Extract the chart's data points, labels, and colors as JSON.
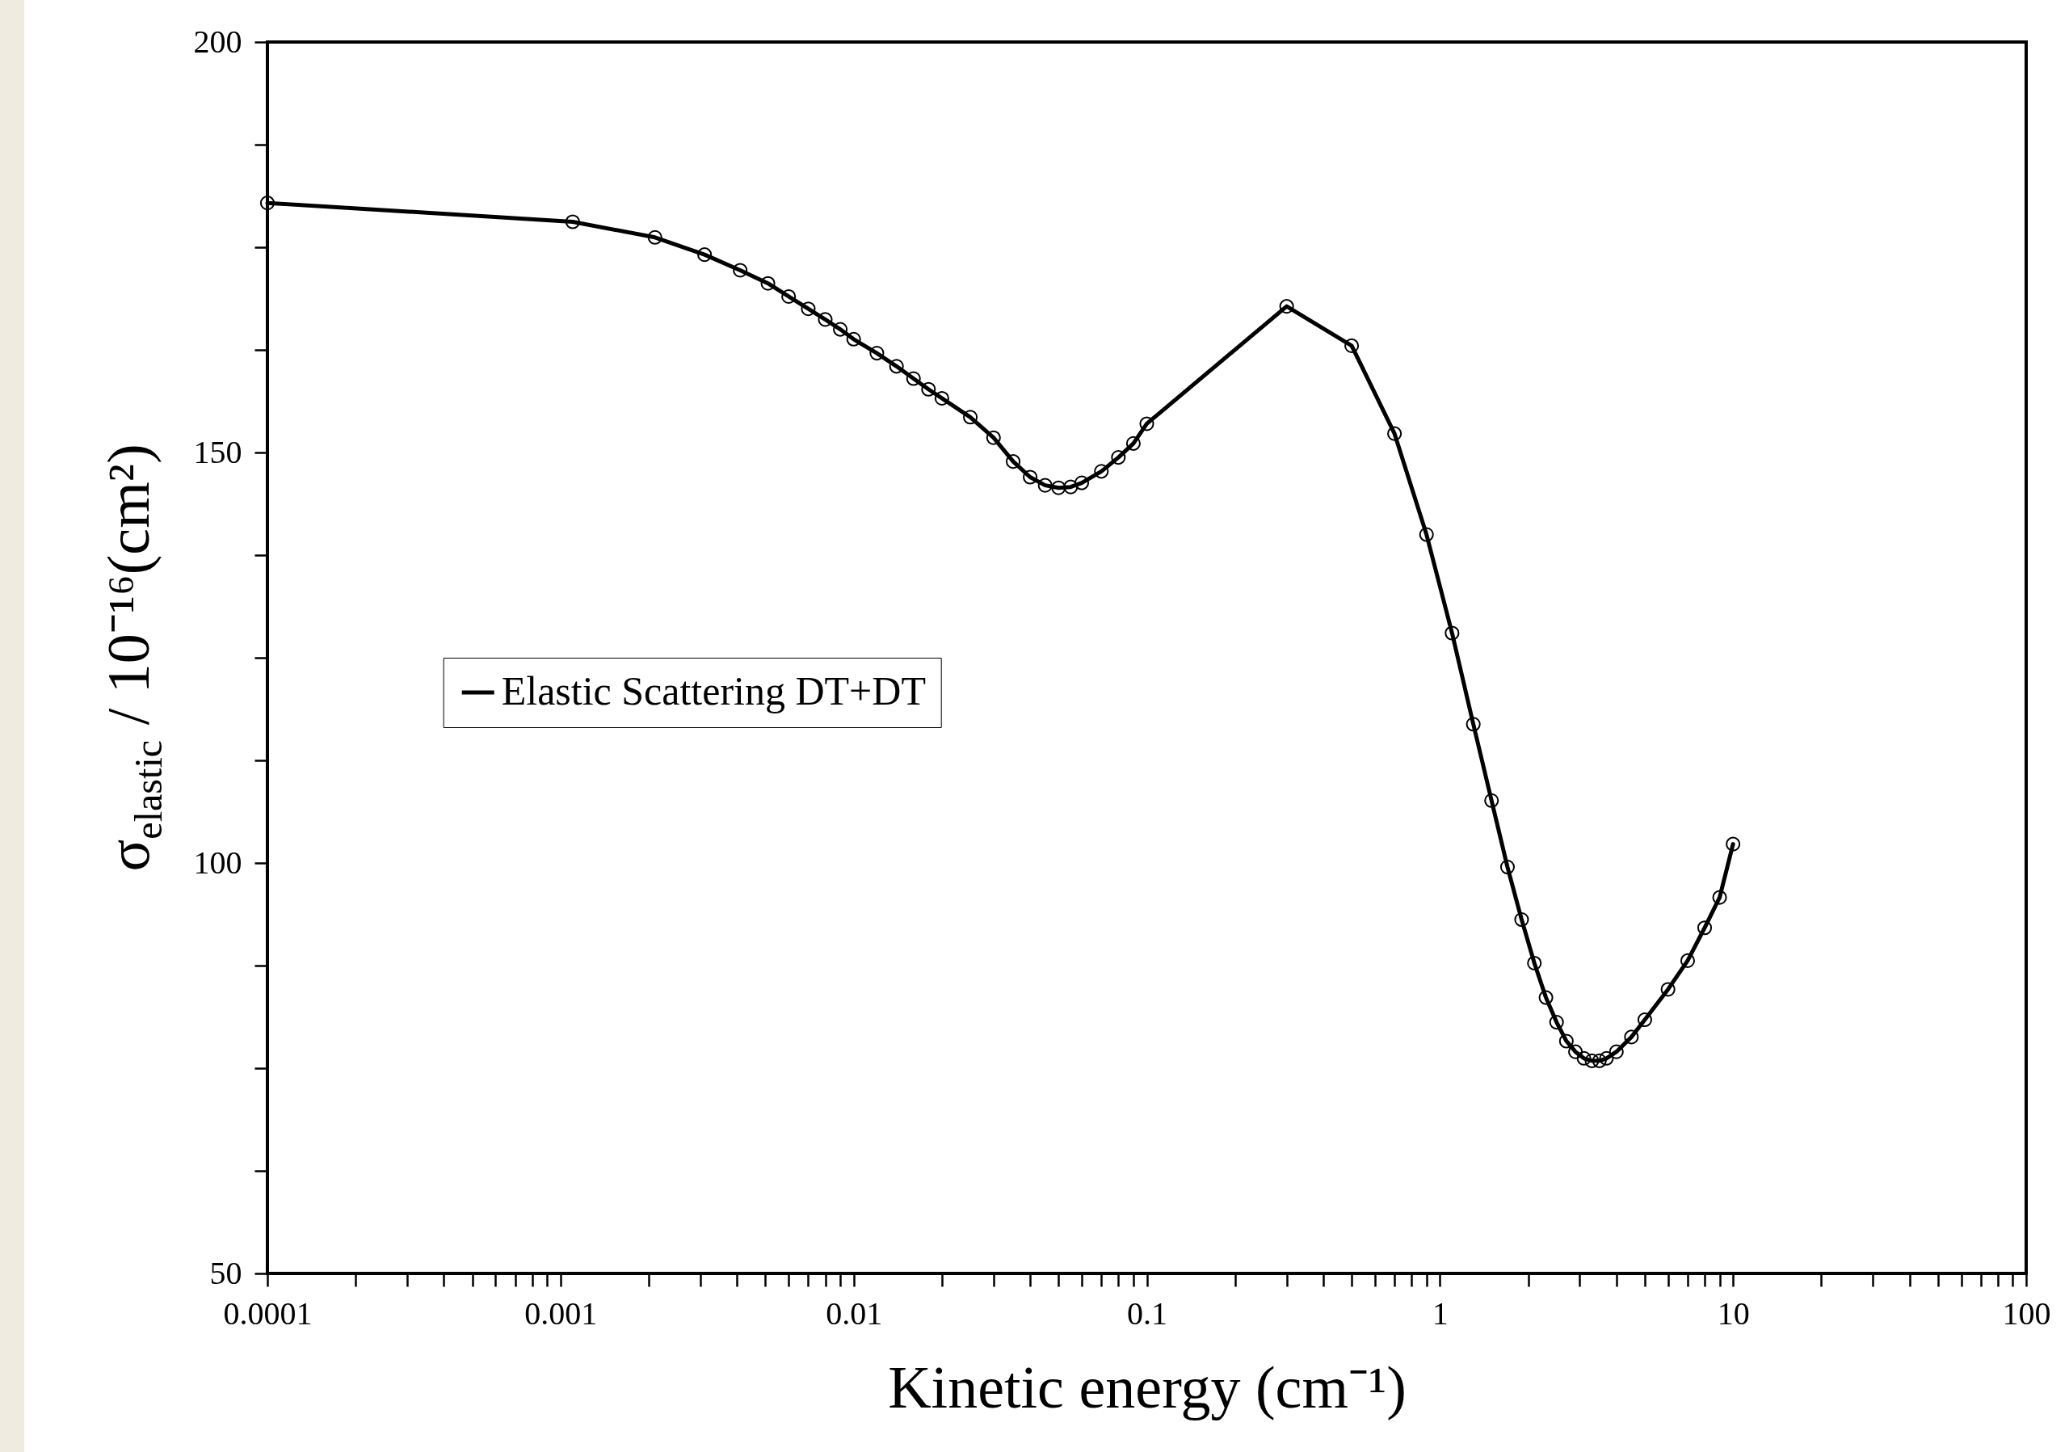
{
  "chart_data": {
    "type": "line",
    "xlabel": "Kinetic energy (cm⁻¹)",
    "ylabel": "σ$_{elastic}$ / 10⁻¹⁶(cm²)",
    "log": "x",
    "legend": "left",
    "marker": "circle",
    "line_style": "solid",
    "x": [
      0.0001,
      0.0011,
      0.0021,
      0.0031,
      0.0041,
      0.0051,
      0.006,
      0.007,
      0.008,
      0.009,
      0.01,
      0.012,
      0.014,
      0.016,
      0.018,
      0.02,
      0.025,
      0.03,
      0.035,
      0.04,
      0.045,
      0.05,
      0.055,
      0.06,
      0.07,
      0.08,
      0.09,
      0.1,
      0.3,
      0.5,
      0.7,
      0.9,
      1.1,
      1.3,
      1.5,
      1.7,
      1.9,
      2.1,
      2.3,
      2.5,
      2.7,
      2.9,
      3.1,
      3.3,
      3.5,
      3.7,
      4,
      4.5,
      5,
      6,
      7,
      8,
      9,
      10
    ],
    "series": [
      {
        "name": "Elastic Scattering DT+DT",
        "color": "#000000",
        "values": [
          180.4,
          178.1,
          176.2,
          174.1,
          172.2,
          170.6,
          169.0,
          167.5,
          166.2,
          165.0,
          163.8,
          162.1,
          160.5,
          159.0,
          157.7,
          156.6,
          154.3,
          151.8,
          148.9,
          147.0,
          146.0,
          145.7,
          145.8,
          146.3,
          147.7,
          149.4,
          151.1,
          153.5,
          167.8,
          163.0,
          152.3,
          140.0,
          128.0,
          116.9,
          107.6,
          99.5,
          93.1,
          87.8,
          83.6,
          80.6,
          78.3,
          77.0,
          76.2,
          75.9,
          75.9,
          76.2,
          77.0,
          78.8,
          80.9,
          84.6,
          88.1,
          92.1,
          95.8,
          102.3
        ]
      }
    ],
    "xlim": [
      0.0001,
      100
    ],
    "xticks": [
      0.0001,
      {
        "value": 0.0002,
        "label": null
      },
      {
        "value": 0.0003,
        "label": null
      },
      {
        "value": 0.0004,
        "label": null
      },
      {
        "value": 0.0005,
        "label": null
      },
      {
        "value": 0.0006,
        "label": null
      },
      {
        "value": 0.0007,
        "label": null
      },
      {
        "value": 0.0008,
        "label": null
      },
      {
        "value": 0.0009,
        "label": null
      },
      0.001,
      {
        "value": 0.002,
        "label": null
      },
      {
        "value": 0.003,
        "label": null
      },
      {
        "value": 0.004,
        "label": null
      },
      {
        "value": 0.005,
        "label": null
      },
      {
        "value": 0.006,
        "label": null
      },
      {
        "value": 0.007,
        "label": null
      },
      {
        "value": 0.008,
        "label": null
      },
      {
        "value": 0.009,
        "label": null
      },
      0.01,
      {
        "value": 0.02,
        "label": null
      },
      {
        "value": 0.03,
        "label": null
      },
      {
        "value": 0.04,
        "label": null
      },
      {
        "value": 0.05,
        "label": null
      },
      {
        "value": 0.06,
        "label": null
      },
      {
        "value": 0.07,
        "label": null
      },
      {
        "value": 0.08,
        "label": null
      },
      {
        "value": 0.09,
        "label": null
      },
      0.1,
      {
        "value": 0.2,
        "label": null
      },
      {
        "value": 0.3,
        "label": null
      },
      {
        "value": 0.4,
        "label": null
      },
      {
        "value": 0.5,
        "label": null
      },
      {
        "value": 0.6,
        "label": null
      },
      {
        "value": 0.7,
        "label": null
      },
      {
        "value": 0.8,
        "label": null
      },
      {
        "value": 0.9,
        "label": null
      },
      1,
      {
        "value": 2,
        "label": null
      },
      {
        "value": 3,
        "label": null
      },
      {
        "value": 4,
        "label": null
      },
      {
        "value": 5,
        "label": null
      },
      {
        "value": 6,
        "label": null
      },
      {
        "value": 7,
        "label": null
      },
      {
        "value": 8,
        "label": null
      },
      {
        "value": 9,
        "label": null
      },
      10,
      {
        "value": 20,
        "label": null
      },
      {
        "value": 30,
        "label": null
      },
      {
        "value": 40,
        "label": null
      },
      {
        "value": 50,
        "label": null
      },
      {
        "value": 60,
        "label": null
      },
      {
        "value": 70,
        "label": null
      },
      {
        "value": 80,
        "label": null
      },
      {
        "value": 90,
        "label": null
      },
      100
    ],
    "ylim": [
      50,
      200
    ],
    "yticks": [
      50,
      {
        "value": 62.5,
        "label": null
      },
      {
        "value": 75,
        "label": null
      },
      {
        "value": 87.5,
        "label": null
      },
      100,
      {
        "value": 112.5,
        "label": null
      },
      {
        "value": 125,
        "label": null
      },
      {
        "value": 137.5,
        "label": null
      },
      150,
      {
        "value": 162.5,
        "label": null
      },
      {
        "value": 175,
        "label": null
      },
      {
        "value": 187.5,
        "label": null
      },
      200
    ]
  }
}
